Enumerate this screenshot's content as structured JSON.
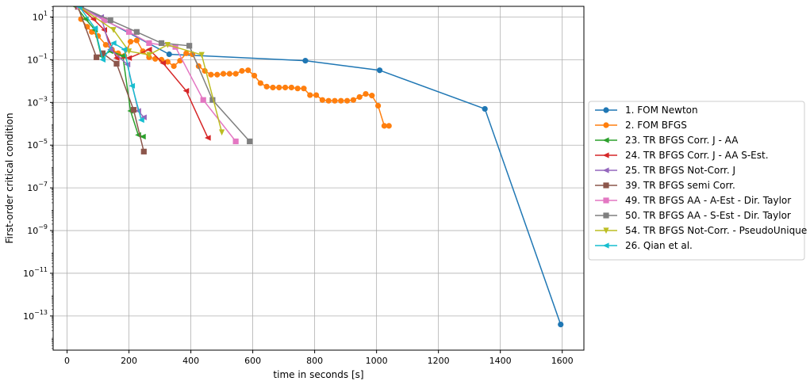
{
  "chart_data": {
    "type": "line",
    "title": "",
    "xlabel": "time in seconds [s]",
    "ylabel": "First-order critical condition",
    "xlim": [
      -45,
      1670
    ],
    "ylim_log10": [
      -14.6,
      1.5
    ],
    "yscale": "log",
    "grid": true,
    "legend_position": "right",
    "x_ticks": [
      0,
      200,
      400,
      600,
      800,
      1000,
      1200,
      1400,
      1600
    ],
    "y_ticks_exp": [
      1,
      -1,
      -3,
      -5,
      -7,
      -9,
      -11,
      -13
    ],
    "series": [
      {
        "name": "1. FOM Newton",
        "color": "#1f77b4",
        "marker": "circle",
        "x": [
          40,
          330,
          770,
          1010,
          1350,
          1595
        ],
        "y": [
          30,
          0.18,
          0.09,
          0.032,
          0.0005,
          4e-14
        ]
      },
      {
        "name": "2. FOM BFGS",
        "color": "#ff7f0e",
        "marker": "circle",
        "x": [
          45,
          65,
          80,
          100,
          125,
          145,
          165,
          185,
          205,
          225,
          245,
          265,
          285,
          305,
          325,
          345,
          365,
          385,
          405,
          425,
          445,
          465,
          485,
          505,
          525,
          545,
          565,
          585,
          605,
          625,
          645,
          665,
          685,
          705,
          725,
          745,
          765,
          785,
          805,
          825,
          845,
          865,
          885,
          905,
          925,
          945,
          965,
          985,
          1005,
          1025,
          1040
        ],
        "y": [
          8,
          3.5,
          2,
          1.3,
          0.5,
          0.3,
          0.2,
          0.15,
          0.7,
          0.8,
          0.25,
          0.13,
          0.11,
          0.1,
          0.08,
          0.05,
          0.09,
          0.2,
          0.18,
          0.05,
          0.03,
          0.02,
          0.02,
          0.022,
          0.022,
          0.022,
          0.03,
          0.032,
          0.018,
          0.008,
          0.0055,
          0.005,
          0.005,
          0.005,
          0.005,
          0.0045,
          0.0045,
          0.0022,
          0.0022,
          0.0013,
          0.0012,
          0.0012,
          0.0012,
          0.0012,
          0.0013,
          0.0018,
          0.0025,
          0.0021,
          0.0007,
          8e-05,
          8e-05
        ]
      },
      {
        "name": "23. TR BFGS Corr. J - AA",
        "color": "#2ca02c",
        "marker": "triangle-left",
        "x": [
          30,
          60,
          90,
          110,
          140,
          180,
          205,
          230,
          245
        ],
        "y": [
          30,
          8,
          2.5,
          0.15,
          0.25,
          0.15,
          0.0004,
          3e-05,
          2.5e-05
        ]
      },
      {
        "name": "24. TR BFGS Corr. J - AA S-Est.",
        "color": "#d62728",
        "marker": "triangle-left",
        "x": [
          40,
          85,
          120,
          160,
          200,
          265,
          310,
          385,
          455
        ],
        "y": [
          30,
          8,
          2.5,
          0.12,
          0.12,
          0.3,
          0.07,
          0.0035,
          2.2e-05
        ]
      },
      {
        "name": "25. TR BFGS Not-Corr. J",
        "color": "#9467bd",
        "marker": "triangle-left",
        "x": [
          45,
          110,
          140,
          195,
          230,
          248
        ],
        "y": [
          30,
          10,
          0.3,
          0.06,
          0.0004,
          0.0002
        ]
      },
      {
        "name": "39. TR BFGS semi Corr.",
        "color": "#8c564b",
        "marker": "square",
        "x": [
          35,
          95,
          115,
          160,
          215,
          248
        ],
        "y": [
          30,
          0.13,
          0.2,
          0.065,
          0.00045,
          5e-06
        ]
      },
      {
        "name": "49. TR BFGS AA - A-Est - Dir. Taylor",
        "color": "#e377c2",
        "marker": "square",
        "x": [
          40,
          120,
          200,
          265,
          350,
          440,
          545
        ],
        "y": [
          30,
          7,
          2,
          0.6,
          0.4,
          0.0013,
          1.5e-05
        ]
      },
      {
        "name": "50. TR BFGS AA - S-Est - Dir. Taylor",
        "color": "#7f7f7f",
        "marker": "square",
        "x": [
          45,
          140,
          225,
          305,
          395,
          470,
          590
        ],
        "y": [
          30,
          7,
          2,
          0.6,
          0.45,
          0.0013,
          1.5e-05
        ]
      },
      {
        "name": "54. TR BFGS Not-Corr. - PseudoUnique",
        "color": "#bcbd22",
        "marker": "triangle-down",
        "x": [
          40,
          150,
          200,
          265,
          325,
          435,
          500
        ],
        "y": [
          30,
          2.5,
          0.25,
          0.17,
          0.5,
          0.17,
          4e-05
        ]
      },
      {
        "name": "26. Qian et al.",
        "color": "#17becf",
        "marker": "triangle-left",
        "x": [
          40,
          90,
          115,
          150,
          185,
          210,
          240
        ],
        "y": [
          30,
          3,
          0.1,
          0.6,
          0.3,
          0.006,
          0.00015
        ]
      }
    ]
  }
}
